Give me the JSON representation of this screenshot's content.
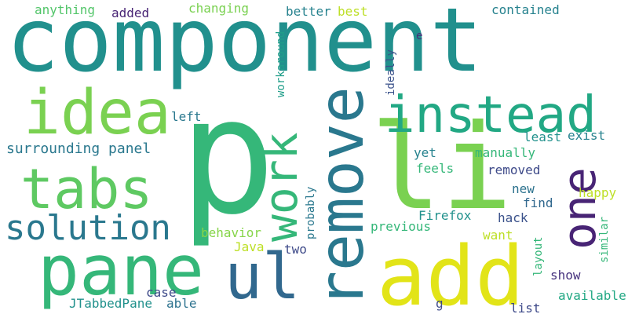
{
  "words": [
    {
      "text": "component",
      "color": "#21908d"
    },
    {
      "text": "p",
      "color": "#35b779"
    },
    {
      "text": "li",
      "color": "#7ad151"
    },
    {
      "text": "remove",
      "color": "#2a788e"
    },
    {
      "text": "add",
      "color": "#e2e418"
    },
    {
      "text": "idea",
      "color": "#7ad151"
    },
    {
      "text": "instead",
      "color": "#22a884"
    },
    {
      "text": "one",
      "color": "#482475"
    },
    {
      "text": "tabs",
      "color": "#5ec962"
    },
    {
      "text": "pane",
      "color": "#35b779"
    },
    {
      "text": "ul",
      "color": "#31688e"
    },
    {
      "text": "work",
      "color": "#35b779"
    },
    {
      "text": "solution",
      "color": "#2a788e"
    },
    {
      "text": "surrounding panel",
      "color": "#2a788e"
    },
    {
      "text": "anything",
      "color": "#52c569"
    },
    {
      "text": "added",
      "color": "#482475"
    },
    {
      "text": "changing",
      "color": "#7ad151"
    },
    {
      "text": "better",
      "color": "#26828e"
    },
    {
      "text": "best",
      "color": "#bddf26"
    },
    {
      "text": "contained",
      "color": "#26828e"
    },
    {
      "text": "workaround",
      "color": "#1f9e89"
    },
    {
      "text": "ideally",
      "color": "#3b528b"
    },
    {
      "text": "e",
      "color": "#472d7b"
    },
    {
      "text": "left",
      "color": "#2a788e"
    },
    {
      "text": "least",
      "color": "#21918c"
    },
    {
      "text": "exist",
      "color": "#26828e"
    },
    {
      "text": "manually",
      "color": "#35b779"
    },
    {
      "text": "yet",
      "color": "#26828e"
    },
    {
      "text": "feels",
      "color": "#35b779"
    },
    {
      "text": "removed",
      "color": "#3e4a89"
    },
    {
      "text": "new",
      "color": "#2c728e"
    },
    {
      "text": "happy",
      "color": "#bddf26"
    },
    {
      "text": "find",
      "color": "#31688e"
    },
    {
      "text": "probably",
      "color": "#2a788e"
    },
    {
      "text": "Firefox",
      "color": "#21918c"
    },
    {
      "text": "hack",
      "color": "#3b528b"
    },
    {
      "text": "similar",
      "color": "#35b779"
    },
    {
      "text": "behavior",
      "color": "#86d549"
    },
    {
      "text": "previous",
      "color": "#35b779"
    },
    {
      "text": "want",
      "color": "#bddf26"
    },
    {
      "text": "layout",
      "color": "#35b779"
    },
    {
      "text": "Java",
      "color": "#bddf26"
    },
    {
      "text": "two",
      "color": "#3e4a89"
    },
    {
      "text": "show",
      "color": "#46327e"
    },
    {
      "text": "case",
      "color": "#3e4a89"
    },
    {
      "text": "JTabbedPane",
      "color": "#21918c"
    },
    {
      "text": "able",
      "color": "#2c728e"
    },
    {
      "text": "available",
      "color": "#22a884"
    },
    {
      "text": "g",
      "color": "#3e4a89"
    },
    {
      "text": "list",
      "color": "#3e4a89"
    }
  ]
}
